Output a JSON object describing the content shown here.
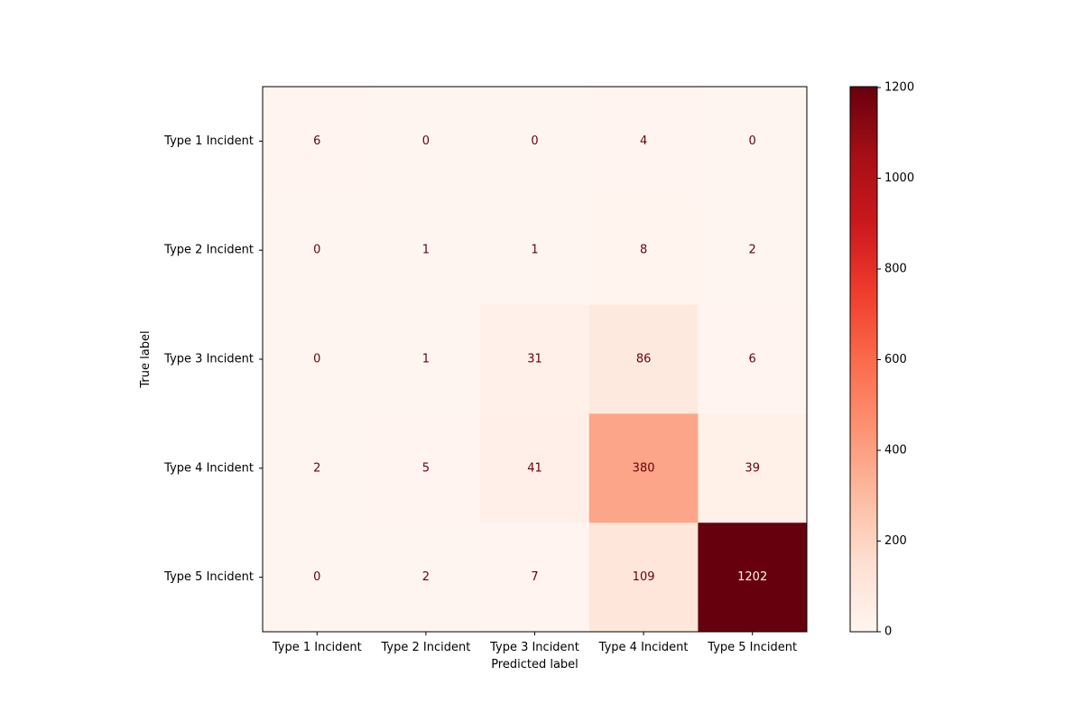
{
  "chart_data": {
    "type": "heatmap",
    "title": "",
    "xlabel": "Predicted label",
    "ylabel": "True label",
    "x_categories": [
      "Type 1 Incident",
      "Type 2 Incident",
      "Type 3 Incident",
      "Type 4 Incident",
      "Type 5 Incident"
    ],
    "y_categories": [
      "Type 1 Incident",
      "Type 2 Incident",
      "Type 3 Incident",
      "Type 4 Incident",
      "Type 5 Incident"
    ],
    "matrix": [
      [
        6,
        0,
        0,
        4,
        0
      ],
      [
        0,
        1,
        1,
        8,
        2
      ],
      [
        0,
        1,
        31,
        86,
        6
      ],
      [
        2,
        5,
        41,
        380,
        39
      ],
      [
        0,
        2,
        7,
        109,
        1202
      ]
    ],
    "colormap": "Reds",
    "colorbar": {
      "range": [
        0,
        1202
      ],
      "ticks": [
        0,
        200,
        400,
        600,
        800,
        1000,
        1200
      ]
    },
    "cell_text_colors": {
      "dark": "#67000d",
      "light": "#fff5f0"
    }
  }
}
